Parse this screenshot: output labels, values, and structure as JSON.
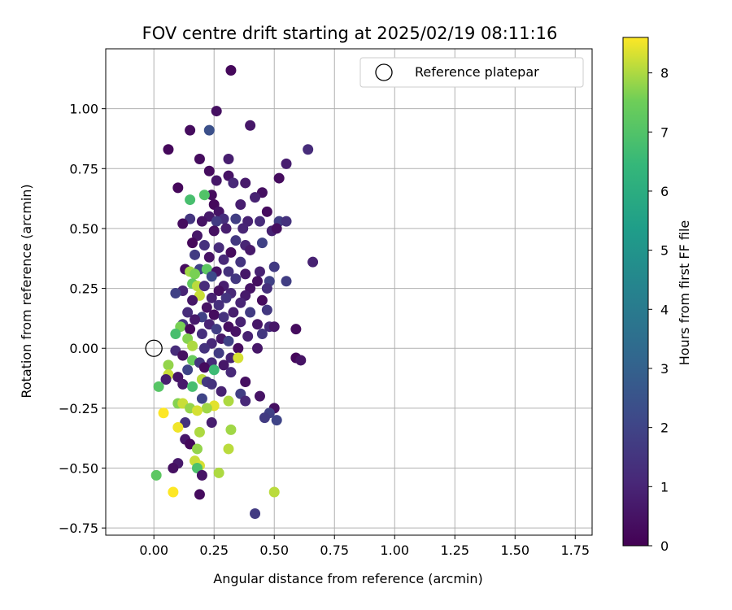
{
  "chart_data": {
    "type": "scatter",
    "title": "FOV centre drift starting at 2025/02/19 08:11:16",
    "xlabel": "Angular distance from reference (arcmin)",
    "ylabel": "Rotation from reference (arcmin)",
    "xlim": [
      -0.2,
      1.82
    ],
    "ylim": [
      -0.78,
      1.25
    ],
    "xticks": [
      0.0,
      0.25,
      0.5,
      0.75,
      1.0,
      1.25,
      1.5,
      1.75
    ],
    "xtick_labels": [
      "0.00",
      "0.25",
      "0.50",
      "0.75",
      "1.00",
      "1.25",
      "1.50",
      "1.75"
    ],
    "yticks": [
      -0.75,
      -0.5,
      -0.25,
      0.0,
      0.25,
      0.5,
      0.75,
      1.0
    ],
    "ytick_labels": [
      "−0.75",
      "−0.50",
      "−0.25",
      "0.00",
      "0.25",
      "0.50",
      "0.75",
      "1.00"
    ],
    "grid": true,
    "legend": {
      "placement": "top-right",
      "entries": [
        "Reference platepar"
      ]
    },
    "reference_point": {
      "x": 0.0,
      "y": 0.0,
      "marker": "open-circle"
    },
    "colorbar": {
      "label": "Hours from first FF file",
      "colormap": "viridis",
      "range": [
        0,
        8.6
      ],
      "ticks": [
        0,
        1,
        2,
        3,
        4,
        5,
        6,
        7,
        8
      ],
      "tick_labels": [
        "0",
        "1",
        "2",
        "3",
        "4",
        "5",
        "6",
        "7",
        "8"
      ]
    },
    "series": [
      {
        "columns": [
          "x",
          "y",
          "hours"
        ],
        "points": [
          [
            0.32,
            1.16,
            0.2
          ],
          [
            0.26,
            0.99,
            0.4
          ],
          [
            0.4,
            0.93,
            0.6
          ],
          [
            0.15,
            0.91,
            0.3
          ],
          [
            0.23,
            0.91,
            2.4
          ],
          [
            0.06,
            0.83,
            0.2
          ],
          [
            0.64,
            0.83,
            1.2
          ],
          [
            0.19,
            0.79,
            0.3
          ],
          [
            0.31,
            0.79,
            0.8
          ],
          [
            0.55,
            0.77,
            0.8
          ],
          [
            0.23,
            0.74,
            0.3
          ],
          [
            0.31,
            0.72,
            0.5
          ],
          [
            0.52,
            0.71,
            0.3
          ],
          [
            0.26,
            0.7,
            0.6
          ],
          [
            0.33,
            0.69,
            1.1
          ],
          [
            0.38,
            0.69,
            0.7
          ],
          [
            0.1,
            0.67,
            0.2
          ],
          [
            0.45,
            0.65,
            0.4
          ],
          [
            0.24,
            0.64,
            0.3
          ],
          [
            0.21,
            0.64,
            7.0
          ],
          [
            0.42,
            0.63,
            0.9
          ],
          [
            0.15,
            0.62,
            6.8
          ],
          [
            0.25,
            0.6,
            0.2
          ],
          [
            0.36,
            0.6,
            0.8
          ],
          [
            0.27,
            0.57,
            0.5
          ],
          [
            0.47,
            0.57,
            0.3
          ],
          [
            0.23,
            0.55,
            0.7
          ],
          [
            0.29,
            0.54,
            1.3
          ],
          [
            0.34,
            0.54,
            1.8
          ],
          [
            0.15,
            0.54,
            1.5
          ],
          [
            0.2,
            0.53,
            0.5
          ],
          [
            0.26,
            0.53,
            1.7
          ],
          [
            0.39,
            0.53,
            0.9
          ],
          [
            0.44,
            0.53,
            1.2
          ],
          [
            0.12,
            0.52,
            0.3
          ],
          [
            0.52,
            0.53,
            1.8
          ],
          [
            0.55,
            0.53,
            1.4
          ],
          [
            0.3,
            0.5,
            0.8
          ],
          [
            0.37,
            0.5,
            1.0
          ],
          [
            0.49,
            0.49,
            0.9
          ],
          [
            0.51,
            0.5,
            0.4
          ],
          [
            0.25,
            0.49,
            0.4
          ],
          [
            0.18,
            0.47,
            0.6
          ],
          [
            0.34,
            0.45,
            1.6
          ],
          [
            0.45,
            0.44,
            1.9
          ],
          [
            0.16,
            0.44,
            0.2
          ],
          [
            0.21,
            0.43,
            1.4
          ],
          [
            0.27,
            0.42,
            1.2
          ],
          [
            0.38,
            0.43,
            1.0
          ],
          [
            0.4,
            0.41,
            0.7
          ],
          [
            0.32,
            0.4,
            0.3
          ],
          [
            0.17,
            0.39,
            1.7
          ],
          [
            0.23,
            0.38,
            0.5
          ],
          [
            0.29,
            0.37,
            1.1
          ],
          [
            0.36,
            0.36,
            1.5
          ],
          [
            0.66,
            0.36,
            0.9
          ],
          [
            0.5,
            0.34,
            1.7
          ],
          [
            0.13,
            0.33,
            0.3
          ],
          [
            0.19,
            0.33,
            1.9
          ],
          [
            0.22,
            0.33,
            7.2
          ],
          [
            0.26,
            0.32,
            0.5
          ],
          [
            0.31,
            0.32,
            1.4
          ],
          [
            0.38,
            0.31,
            0.6
          ],
          [
            0.44,
            0.32,
            0.9
          ],
          [
            0.15,
            0.32,
            7.9
          ],
          [
            0.17,
            0.31,
            7.6
          ],
          [
            0.24,
            0.3,
            2.2
          ],
          [
            0.34,
            0.29,
            1.6
          ],
          [
            0.43,
            0.28,
            0.4
          ],
          [
            0.48,
            0.28,
            1.9
          ],
          [
            0.55,
            0.28,
            1.8
          ],
          [
            0.16,
            0.27,
            7.3
          ],
          [
            0.18,
            0.26,
            8.1
          ],
          [
            0.21,
            0.26,
            1.2
          ],
          [
            0.29,
            0.26,
            0.8
          ],
          [
            0.4,
            0.25,
            0.5
          ],
          [
            0.47,
            0.25,
            1.3
          ],
          [
            0.12,
            0.24,
            1.0
          ],
          [
            0.27,
            0.24,
            0.4
          ],
          [
            0.32,
            0.23,
            1.1
          ],
          [
            0.09,
            0.23,
            1.9
          ],
          [
            0.38,
            0.22,
            0.7
          ],
          [
            0.19,
            0.22,
            8.2
          ],
          [
            0.24,
            0.21,
            0.9
          ],
          [
            0.3,
            0.21,
            1.5
          ],
          [
            0.45,
            0.2,
            0.3
          ],
          [
            0.16,
            0.2,
            0.6
          ],
          [
            0.36,
            0.19,
            1.0
          ],
          [
            0.27,
            0.18,
            1.3
          ],
          [
            0.22,
            0.17,
            0.5
          ],
          [
            0.47,
            0.16,
            1.6
          ],
          [
            0.33,
            0.15,
            0.8
          ],
          [
            0.14,
            0.15,
            1.2
          ],
          [
            0.4,
            0.15,
            1.7
          ],
          [
            0.25,
            0.14,
            0.3
          ],
          [
            0.2,
            0.13,
            1.9
          ],
          [
            0.29,
            0.13,
            1.4
          ],
          [
            0.17,
            0.12,
            0.7
          ],
          [
            0.36,
            0.11,
            0.9
          ],
          [
            0.12,
            0.1,
            1.5
          ],
          [
            0.23,
            0.1,
            1.0
          ],
          [
            0.43,
            0.1,
            0.6
          ],
          [
            0.31,
            0.09,
            0.4
          ],
          [
            0.11,
            0.09,
            7.6
          ],
          [
            0.15,
            0.08,
            0.2
          ],
          [
            0.26,
            0.08,
            1.8
          ],
          [
            0.34,
            0.07,
            0.5
          ],
          [
            0.48,
            0.09,
            1.2
          ],
          [
            0.5,
            0.09,
            0.6
          ],
          [
            0.59,
            0.08,
            0.3
          ],
          [
            0.09,
            0.06,
            6.8
          ],
          [
            0.2,
            0.06,
            1.3
          ],
          [
            0.39,
            0.05,
            0.9
          ],
          [
            0.45,
            0.06,
            1.6
          ],
          [
            0.14,
            0.04,
            7.7
          ],
          [
            0.28,
            0.04,
            0.6
          ],
          [
            0.31,
            0.03,
            1.9
          ],
          [
            0.24,
            0.02,
            1.1
          ],
          [
            0.16,
            0.01,
            8.0
          ],
          [
            0.35,
            0.0,
            0.3
          ],
          [
            0.43,
            0.0,
            0.6
          ],
          [
            0.21,
            0.0,
            1.4
          ],
          [
            0.09,
            -0.01,
            1.2
          ],
          [
            0.27,
            -0.02,
            1.7
          ],
          [
            0.12,
            -0.03,
            0.4
          ],
          [
            0.32,
            -0.04,
            0.9
          ],
          [
            0.35,
            -0.04,
            8.3
          ],
          [
            0.59,
            -0.04,
            0.2
          ],
          [
            0.61,
            -0.05,
            0.5
          ],
          [
            0.16,
            -0.05,
            7.4
          ],
          [
            0.19,
            -0.06,
            1.5
          ],
          [
            0.24,
            -0.06,
            1.2
          ],
          [
            0.06,
            -0.07,
            7.8
          ],
          [
            0.29,
            -0.07,
            0.6
          ],
          [
            0.21,
            -0.08,
            0.3
          ],
          [
            0.14,
            -0.09,
            2.0
          ],
          [
            0.25,
            -0.09,
            6.6
          ],
          [
            0.32,
            -0.1,
            1.1
          ],
          [
            0.06,
            -0.11,
            8.2
          ],
          [
            0.1,
            -0.12,
            0.5
          ],
          [
            0.05,
            -0.13,
            0.8
          ],
          [
            0.2,
            -0.13,
            8.1
          ],
          [
            0.22,
            -0.14,
            1.6
          ],
          [
            0.38,
            -0.14,
            0.4
          ],
          [
            0.24,
            -0.15,
            1.4
          ],
          [
            0.12,
            -0.15,
            0.7
          ],
          [
            0.02,
            -0.16,
            7.1
          ],
          [
            0.16,
            -0.16,
            6.8
          ],
          [
            0.28,
            -0.18,
            0.9
          ],
          [
            0.36,
            -0.19,
            1.8
          ],
          [
            0.44,
            -0.2,
            0.5
          ],
          [
            0.2,
            -0.21,
            2.0
          ],
          [
            0.31,
            -0.22,
            8.0
          ],
          [
            0.38,
            -0.22,
            1.1
          ],
          [
            0.1,
            -0.23,
            7.7
          ],
          [
            0.12,
            -0.23,
            8.2
          ],
          [
            0.25,
            -0.24,
            8.4
          ],
          [
            0.22,
            -0.25,
            7.9
          ],
          [
            0.15,
            -0.25,
            7.8
          ],
          [
            0.5,
            -0.25,
            0.4
          ],
          [
            0.18,
            -0.26,
            8.3
          ],
          [
            0.04,
            -0.27,
            8.6
          ],
          [
            0.48,
            -0.27,
            1.9
          ],
          [
            0.46,
            -0.29,
            1.7
          ],
          [
            0.51,
            -0.3,
            2.0
          ],
          [
            0.13,
            -0.31,
            1.4
          ],
          [
            0.24,
            -0.31,
            0.8
          ],
          [
            0.32,
            -0.34,
            7.9
          ],
          [
            0.1,
            -0.33,
            8.5
          ],
          [
            0.19,
            -0.35,
            8.0
          ],
          [
            0.13,
            -0.38,
            0.6
          ],
          [
            0.15,
            -0.4,
            0.2
          ],
          [
            0.18,
            -0.42,
            7.8
          ],
          [
            0.31,
            -0.42,
            8.1
          ],
          [
            0.17,
            -0.47,
            8.2
          ],
          [
            0.1,
            -0.48,
            0.7
          ],
          [
            0.19,
            -0.49,
            8.3
          ],
          [
            0.08,
            -0.5,
            0.4
          ],
          [
            0.18,
            -0.5,
            6.9
          ],
          [
            0.27,
            -0.52,
            8.0
          ],
          [
            0.2,
            -0.53,
            0.5
          ],
          [
            0.01,
            -0.53,
            7.2
          ],
          [
            0.08,
            -0.6,
            8.6
          ],
          [
            0.5,
            -0.6,
            8.1
          ],
          [
            0.19,
            -0.61,
            0.3
          ],
          [
            0.42,
            -0.69,
            1.7
          ]
        ]
      }
    ]
  }
}
